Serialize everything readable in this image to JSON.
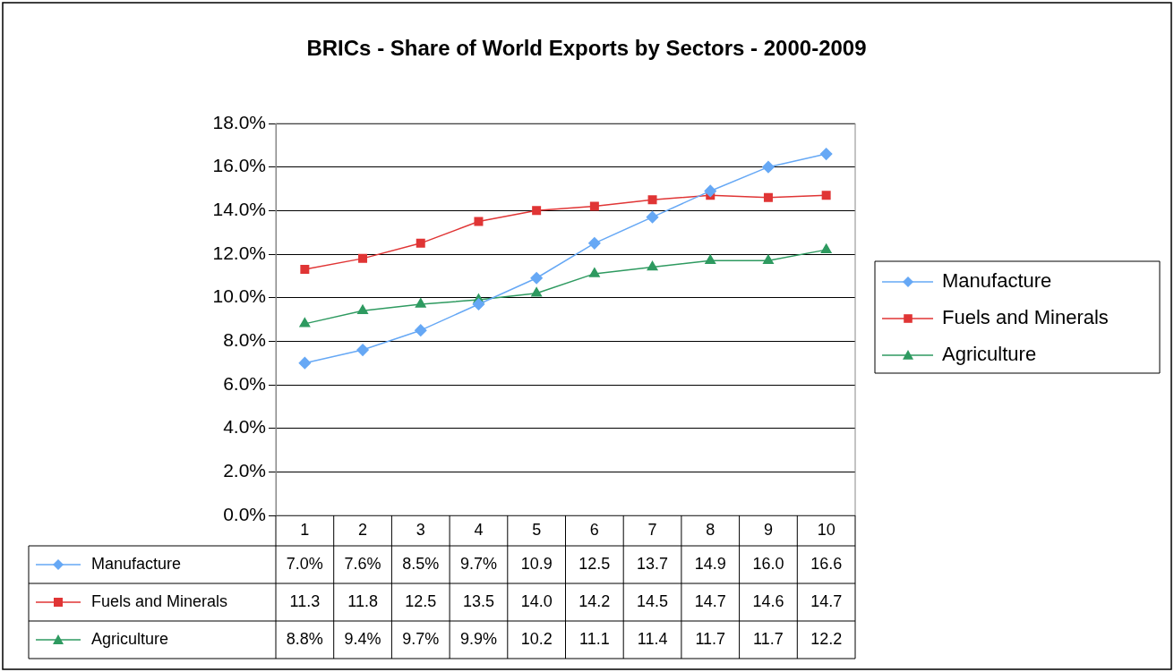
{
  "chart_data": {
    "type": "line",
    "title": "BRICs - Share of World Exports by Sectors - 2000-2009",
    "categories": [
      "1",
      "2",
      "3",
      "4",
      "5",
      "6",
      "7",
      "8",
      "9",
      "10"
    ],
    "series": [
      {
        "name": "Manufacture",
        "color": "#66a8f5",
        "marker": "diamond",
        "values": [
          7.0,
          7.6,
          8.5,
          9.7,
          10.9,
          12.5,
          13.7,
          14.9,
          16.0,
          16.6
        ],
        "value_labels": [
          "7.0%",
          "7.6%",
          "8.5%",
          "9.7%",
          "10.9",
          "12.5",
          "13.7",
          "14.9",
          "16.0",
          "16.6"
        ]
      },
      {
        "name": "Fuels and Minerals",
        "color": "#e03535",
        "marker": "square",
        "values": [
          11.3,
          11.8,
          12.5,
          13.5,
          14.0,
          14.2,
          14.5,
          14.7,
          14.6,
          14.7
        ],
        "value_labels": [
          "11.3",
          "11.8",
          "12.5",
          "13.5",
          "14.0",
          "14.2",
          "14.5",
          "14.7",
          "14.6",
          "14.7"
        ]
      },
      {
        "name": "Agriculture",
        "color": "#2e9a60",
        "marker": "triangle",
        "values": [
          8.8,
          9.4,
          9.7,
          9.9,
          10.2,
          11.1,
          11.4,
          11.7,
          11.7,
          12.2
        ],
        "value_labels": [
          "8.8%",
          "9.4%",
          "9.7%",
          "9.9%",
          "10.2",
          "11.1",
          "11.4",
          "11.7",
          "11.7",
          "12.2"
        ]
      }
    ],
    "ylim": [
      0,
      18
    ],
    "yticks": [
      {
        "value": 0,
        "label": "0.0%"
      },
      {
        "value": 2,
        "label": "2.0%"
      },
      {
        "value": 4,
        "label": "4.0%"
      },
      {
        "value": 6,
        "label": "6.0%"
      },
      {
        "value": 8,
        "label": "8.0%"
      },
      {
        "value": 10,
        "label": "10.0%"
      },
      {
        "value": 12,
        "label": "12.0%"
      },
      {
        "value": 14,
        "label": "14.0%"
      },
      {
        "value": 16,
        "label": "16.0%"
      },
      {
        "value": 18,
        "label": "18.0%"
      }
    ],
    "grid": "y",
    "legend": "right",
    "line_style": "solid"
  }
}
